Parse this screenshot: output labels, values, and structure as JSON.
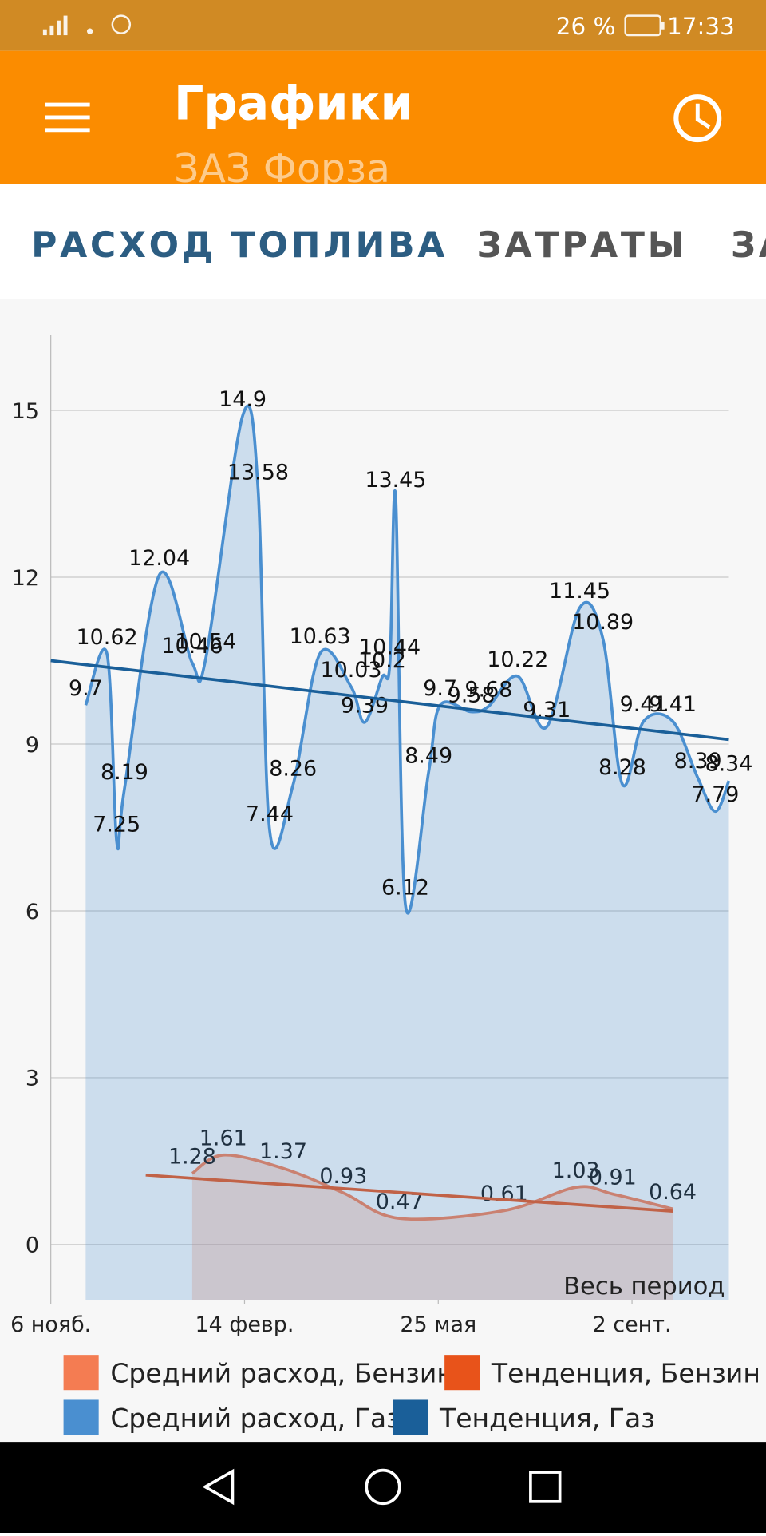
{
  "status_bar": {
    "battery": "26 %",
    "time": "17:33"
  },
  "app_bar": {
    "title": "Графики",
    "subtitle": "ЗАЗ Форза"
  },
  "tabs": [
    "РАСХОД ТОПЛИВА",
    "ЗАТРАТЫ",
    "ЗА"
  ],
  "chart_data": {
    "type": "area",
    "xlim": [
      0,
      350
    ],
    "xticks": [
      {
        "value": 0,
        "label": "6 нояб."
      },
      {
        "value": 100,
        "label": "14 февр."
      },
      {
        "value": 200,
        "label": "25 мая"
      },
      {
        "value": 300,
        "label": "2 сент."
      }
    ],
    "ylim": [
      -1,
      16.35
    ],
    "yticks": [
      0,
      3,
      6,
      9,
      12,
      15
    ],
    "grid": true,
    "annotation": "Весь период",
    "series": [
      {
        "name": "Средний расход, Бензин",
        "color": "#f47c52",
        "fill": true,
        "labels": true,
        "x": [
          73,
          89,
          120,
          151,
          180,
          234,
          271,
          290,
          321
        ],
        "values": [
          1.28,
          1.61,
          1.37,
          0.93,
          0.47,
          0.61,
          1.03,
          0.91,
          0.64
        ]
      },
      {
        "name": "Тенденция, Бензин",
        "color": "#e8531a",
        "fill": false,
        "labels": false,
        "x": [
          49,
          321
        ],
        "values": [
          1.25,
          0.6
        ]
      },
      {
        "name": "Средний расход, Газ",
        "color": "#4a8fd0",
        "fill": true,
        "labels": true,
        "x": [
          18,
          29,
          34,
          38,
          56,
          73,
          80,
          99,
          107,
          113,
          125,
          139,
          155,
          162,
          171,
          175,
          178,
          183,
          195,
          201,
          217,
          226,
          241,
          256,
          273,
          285,
          295,
          306,
          321,
          334,
          343,
          350
        ],
        "values": [
          9.7,
          10.62,
          7.25,
          8.19,
          12.04,
          10.46,
          10.54,
          14.9,
          13.58,
          7.44,
          8.26,
          10.63,
          10.03,
          9.39,
          10.2,
          10.44,
          13.45,
          6.12,
          8.49,
          9.7,
          9.58,
          9.68,
          10.22,
          9.31,
          11.45,
          10.89,
          8.28,
          9.41,
          9.41,
          8.39,
          7.79,
          8.34
        ]
      },
      {
        "name": "Тенденция, Газ",
        "color": "#1a5f99",
        "fill": false,
        "labels": false,
        "x": [
          0,
          350
        ],
        "values": [
          10.5,
          9.08
        ]
      }
    ]
  }
}
